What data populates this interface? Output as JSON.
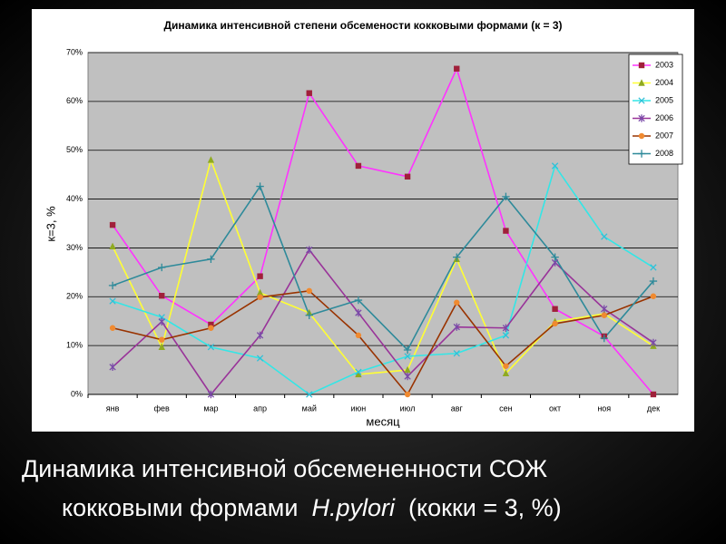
{
  "chart_data": {
    "type": "line",
    "title": "Динамика интенсивной степени обсемености кокковыми формами (к = 3)",
    "x_label": "месяц",
    "y_label": "к=3, %",
    "categories": [
      "янв",
      "фев",
      "мар",
      "апр",
      "май",
      "июн",
      "июл",
      "авг",
      "сен",
      "окт",
      "ноя",
      "дек"
    ],
    "ylim": [
      0,
      70
    ],
    "yticks": [
      {
        "value": 0,
        "label": "0%"
      },
      {
        "value": 10,
        "label": "10%"
      },
      {
        "value": 20,
        "label": "20%"
      },
      {
        "value": 30,
        "label": "30%"
      },
      {
        "value": 40,
        "label": "40%"
      },
      {
        "value": 50,
        "label": "50%"
      },
      {
        "value": 60,
        "label": "60%"
      },
      {
        "value": 70,
        "label": "70%"
      }
    ],
    "grid": true,
    "legend": "top-right",
    "series": [
      {
        "name": "2003",
        "color": "#ff33ff",
        "marker_color": "#a0203a",
        "marker": "square",
        "values": [
          34.7,
          20.2,
          14.3,
          24.2,
          61.7,
          46.8,
          44.6,
          66.7,
          33.5,
          17.5,
          11.9,
          0
        ]
      },
      {
        "name": "2004",
        "color": "#ffff33",
        "marker_color": "#8faa20",
        "marker": "triangle",
        "values": [
          30.3,
          9.7,
          48,
          20.8,
          16.7,
          4.1,
          5,
          27.7,
          4.3,
          14.9,
          16.5,
          9.9
        ]
      },
      {
        "name": "2005",
        "color": "#33e6e6",
        "marker_color": "#30c0d8",
        "marker": "x",
        "values": [
          19.1,
          15.8,
          9.7,
          7.4,
          0,
          4.6,
          7.8,
          8.4,
          12.1,
          46.8,
          32.3,
          26
        ]
      },
      {
        "name": "2006",
        "color": "#993399",
        "marker_color": "#7a4aa8",
        "marker": "star",
        "values": [
          5.6,
          14.9,
          0,
          12.1,
          29.6,
          16.7,
          3.7,
          13.8,
          13.6,
          27,
          17.5,
          10.6
        ]
      },
      {
        "name": "2007",
        "color": "#993300",
        "marker_color": "#f08a30",
        "marker": "circle",
        "values": [
          13.6,
          11.2,
          13.6,
          19.9,
          21.2,
          12.1,
          0,
          18.8,
          5.8,
          14.5,
          16.2,
          20.1
        ]
      },
      {
        "name": "2008",
        "color": "#2e8a9a",
        "marker_color": "#2e8a9a",
        "marker": "plus",
        "values": [
          22.3,
          26,
          27.7,
          42.6,
          16.2,
          19.3,
          9.1,
          28.1,
          40.5,
          28.1,
          11.5,
          23.2
        ]
      }
    ]
  },
  "caption": {
    "line1": "Динамика интенсивной обсемененности СОЖ",
    "line2": [
      "кокковыми формами",
      "H.pylori",
      "(кокки = 3, %)"
    ]
  }
}
